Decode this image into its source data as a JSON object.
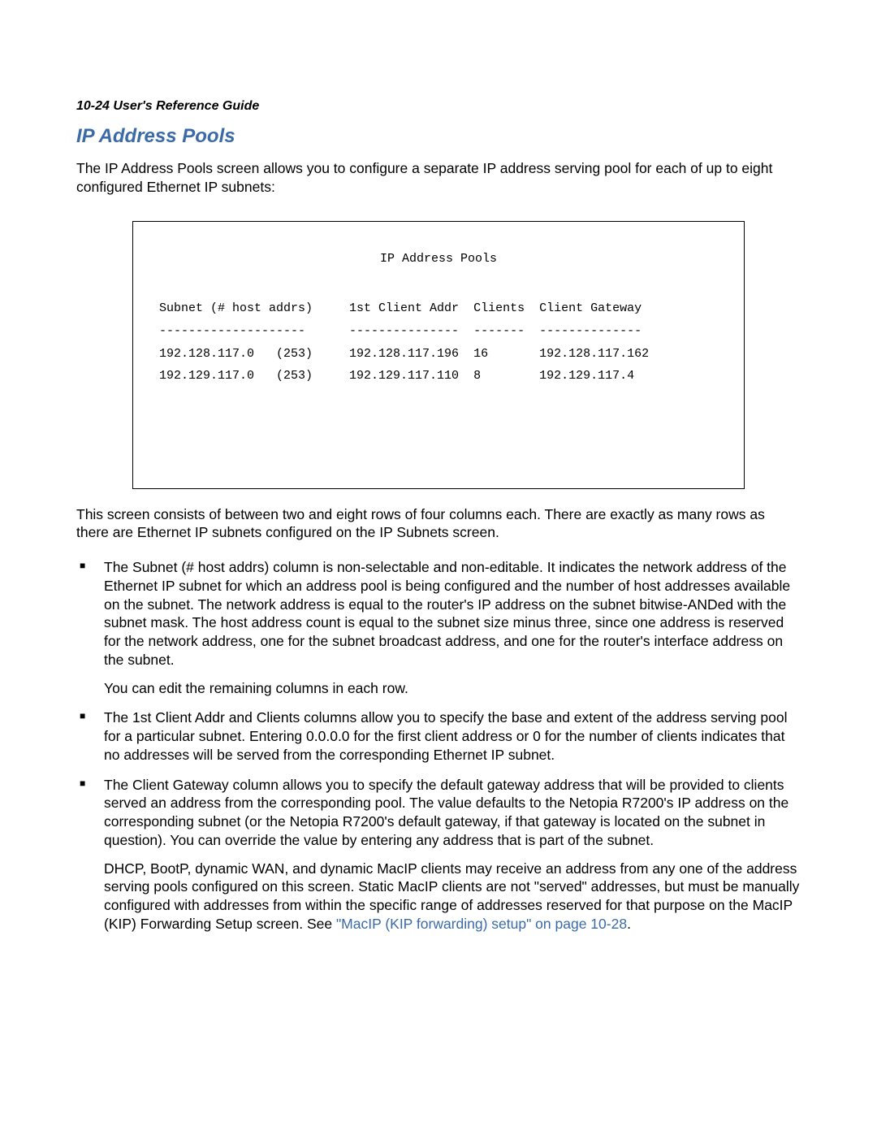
{
  "running_head": "10-24  User's Reference Guide",
  "section_title": "IP Address Pools",
  "intro": "The IP Address Pools screen allows you to configure a separate IP address serving pool for each of up to eight configured Ethernet IP subnets:",
  "terminal": {
    "title": "IP Address Pools",
    "header_line": "Subnet (# host addrs)     1st Client Addr  Clients  Client Gateway",
    "rule_line": "--------------------      ---------------  -------  --------------",
    "rows": [
      "192.128.117.0   (253)     192.128.117.196  16       192.128.117.162",
      "192.129.117.0   (253)     192.129.117.110  8        192.129.117.4"
    ]
  },
  "after_terminal": "This screen consists of between two and eight rows of four columns each. There are exactly as many rows as there are Ethernet IP subnets configured on the IP Subnets screen.",
  "bullets": [
    {
      "text": "The Subnet (# host addrs) column is non-selectable and non-editable. It indicates the network address of the Ethernet IP subnet for which an address pool is being configured and the number of host addresses available on the subnet. The network address is equal to the router's IP address on the subnet bitwise-ANDed with the subnet mask. The host address count is equal to the subnet size minus three, since one address is reserved for the network address, one for the subnet broadcast address, and one for the router's interface address on the subnet.",
      "extra": "You can edit the remaining columns in each row."
    },
    {
      "text": "The 1st Client Addr and Clients columns allow you to specify the base and extent of the address serving pool for a particular subnet. Entering 0.0.0.0 for the first client address or 0 for the number of clients indicates that no addresses will be served from the corresponding Ethernet IP subnet."
    },
    {
      "text": "The Client Gateway column allows you to specify the default gateway address that will be provided to clients served an address from the corresponding pool. The value defaults to the Netopia R7200's IP address on the corresponding subnet (or the Netopia R7200's default gateway, if that gateway is located on the subnet in question). You can override the value by entering any address that is part of the subnet.",
      "extra_pre": "DHCP, BootP, dynamic WAN, and dynamic MacIP clients may receive an address from any one of the address serving pools configured on this screen. Static MacIP clients are not \"served\" addresses, but must be manually configured with addresses from within the specific range of addresses reserved for that purpose on the MacIP (KIP) Forwarding Setup screen. See ",
      "xref": "\"MacIP (KIP forwarding) setup\" on page 10-28",
      "extra_post": "."
    }
  ]
}
